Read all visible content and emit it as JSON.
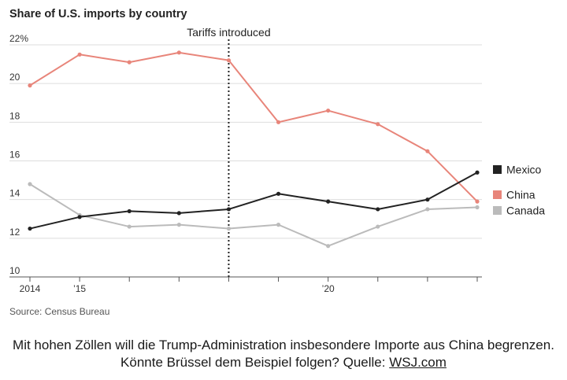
{
  "chart_data": {
    "type": "line",
    "title": "Share of U.S. imports by country",
    "x": [
      2014,
      2015,
      2016,
      2017,
      2018,
      2019,
      2020,
      2021,
      2022,
      2023
    ],
    "x_tick_labels": [
      "2014",
      "’15",
      "",
      "",
      "",
      "",
      "’20",
      "",
      "",
      ""
    ],
    "y_tick_labels": [
      "10",
      "12",
      "14",
      "16",
      "18",
      "20",
      "22%"
    ],
    "y_ticks": [
      10,
      12,
      14,
      16,
      18,
      20,
      22
    ],
    "ylim": [
      10,
      22
    ],
    "xlim": [
      2014,
      2023
    ],
    "grid": true,
    "series": [
      {
        "name": "Mexico",
        "color": "#222222",
        "values": [
          12.5,
          13.1,
          13.4,
          13.3,
          13.5,
          14.3,
          13.9,
          13.5,
          14.0,
          15.4
        ]
      },
      {
        "name": "China",
        "color": "#e8857a",
        "values": [
          19.9,
          21.5,
          21.1,
          21.6,
          21.2,
          18.0,
          18.6,
          17.9,
          16.5,
          13.9
        ]
      },
      {
        "name": "Canada",
        "color": "#bbbbbb",
        "values": [
          14.8,
          13.2,
          12.6,
          12.7,
          12.5,
          12.7,
          11.6,
          12.6,
          13.5,
          13.6
        ]
      }
    ],
    "legend": [
      "Mexico",
      "China",
      "Canada"
    ],
    "annotation": {
      "label": "Tariffs introduced",
      "x": 2018
    },
    "source": "Source: Census Bureau"
  },
  "caption": {
    "line1": "Mit hohen Zöllen will die Trump-Administration insbesondere Importe aus China begrenzen.",
    "line2_prefix": "Könnte Brüssel dem Beispiel folgen? Quelle: ",
    "link_text": "WSJ.com"
  }
}
